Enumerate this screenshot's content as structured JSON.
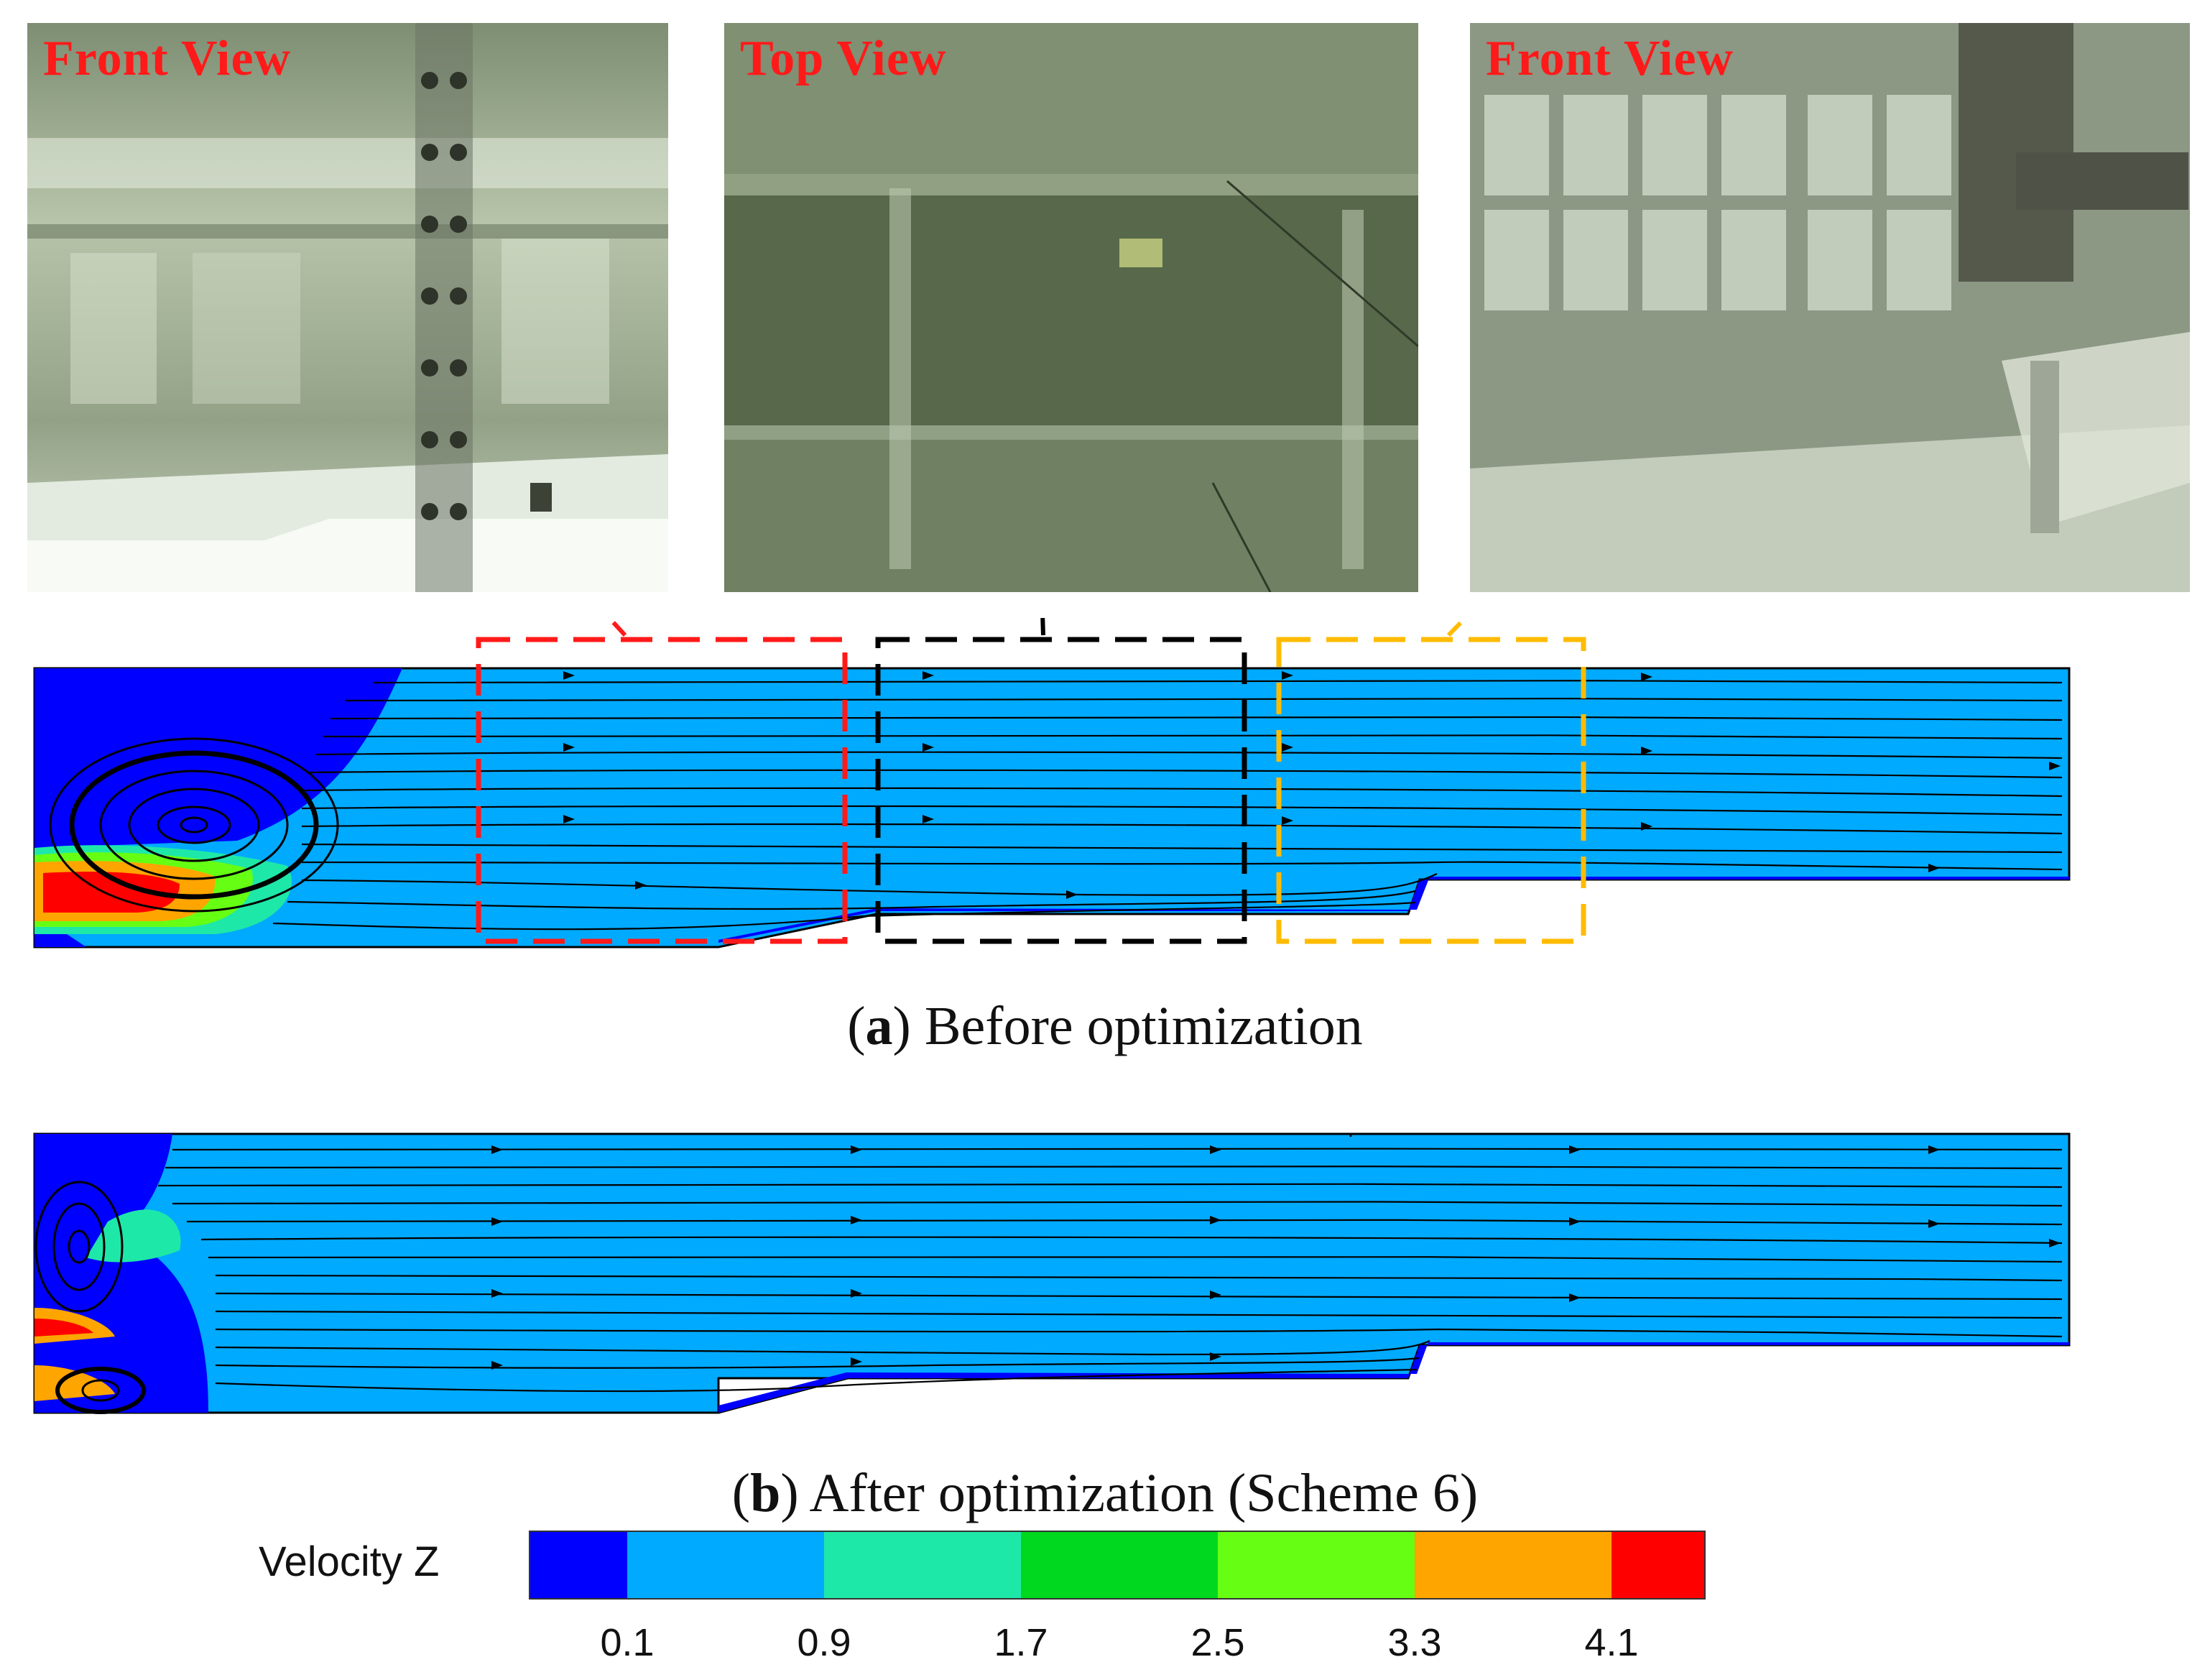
{
  "photos": [
    {
      "label": "Front View"
    },
    {
      "label": "Top View"
    },
    {
      "label": "Front View"
    }
  ],
  "captions": {
    "a": {
      "letter": "a",
      "text": " Before optimization"
    },
    "b": {
      "letter": "b",
      "text": " After optimization (Scheme 6)"
    }
  },
  "legend": {
    "title": "Velocity Z",
    "colors": [
      "#0000ff",
      "#00aaff",
      "#1ee8a8",
      "#00d820",
      "#66ff14",
      "#ffa500",
      "#ff0000"
    ],
    "ticks": [
      "0.1",
      "0.9",
      "1.7",
      "2.5",
      "3.3",
      "4.1"
    ]
  },
  "highlight_colors": {
    "red": "#ff1a1a",
    "black": "#000000",
    "orange": "#ffbb00"
  }
}
